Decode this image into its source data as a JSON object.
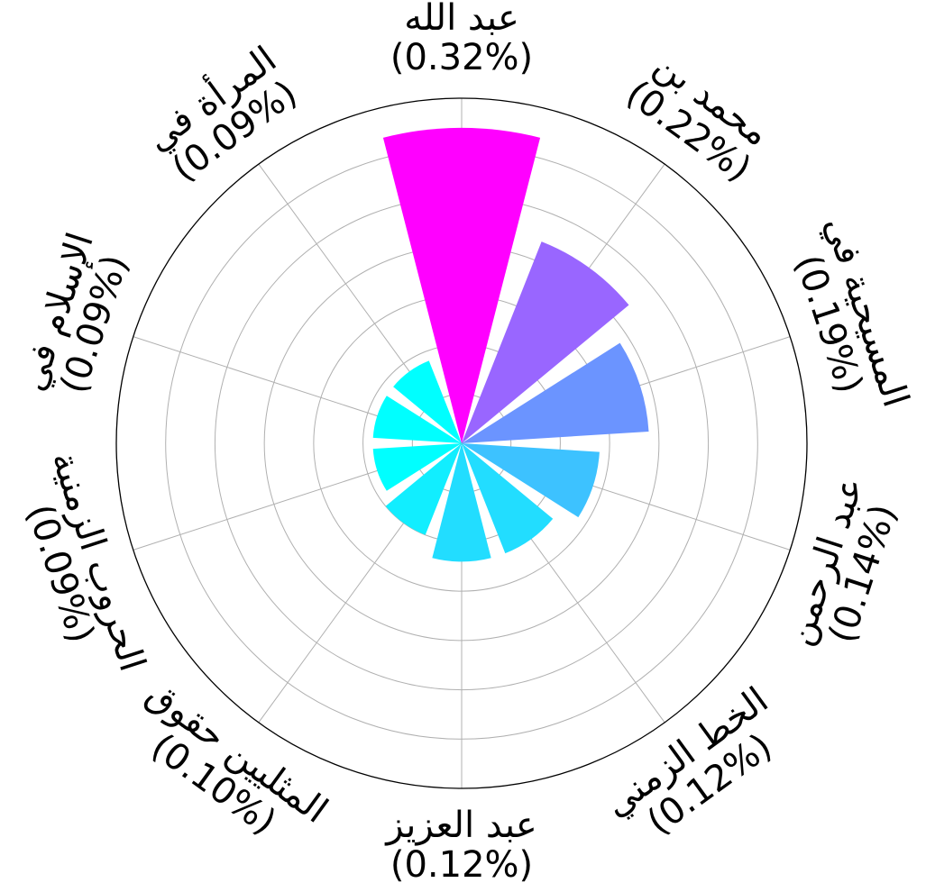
{
  "chart_data": {
    "type": "polar-bar",
    "title": "",
    "rmax": 0.35,
    "grid": true,
    "start_angle": "top",
    "direction": "clockwise",
    "categories": [
      {
        "name": "عبد الله",
        "value": 0.32,
        "label": "(0.32%)",
        "color": "#ff00ff"
      },
      {
        "name": "محمد بن",
        "value": 0.22,
        "label": "(0.22%)",
        "color": "#9966ff"
      },
      {
        "name": "المسيحية في",
        "value": 0.19,
        "label": "(0.19%)",
        "color": "#6b94ff"
      },
      {
        "name": "عبد الرحمن",
        "value": 0.14,
        "label": "(0.14%)",
        "color": "#3dc2ff"
      },
      {
        "name": "الخط الزمني",
        "value": 0.12,
        "label": "(0.12%)",
        "color": "#22ddff"
      },
      {
        "name": "عبد العزيز",
        "value": 0.12,
        "label": "(0.12%)",
        "color": "#22ddff"
      },
      {
        "name": "المثليين حقوق",
        "value": 0.1,
        "label": "(0.10%)",
        "color": "#11eeff"
      },
      {
        "name": "الحروب الزمنية",
        "value": 0.09,
        "label": "(0.09%)",
        "color": "#00ffff"
      },
      {
        "name": "الإسلام في",
        "value": 0.09,
        "label": "(0.09%)",
        "color": "#00ffff"
      },
      {
        "name": "المرأة في",
        "value": 0.09,
        "label": "(0.09%)",
        "color": "#00ffff"
      }
    ]
  }
}
